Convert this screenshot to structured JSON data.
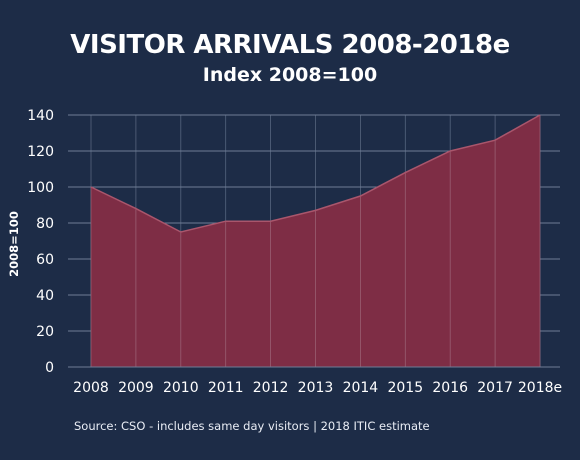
{
  "title": "VISITOR ARRIVALS 2008-2018e",
  "subtitle": "Index 2008=100",
  "source": "Source: CSO - includes same day visitors  |  2018 ITIC estimate",
  "colors": {
    "background": "#1d2c47",
    "area_fill": "#7e2d45",
    "area_stroke": "#a9566c",
    "grid": "#6f7d96",
    "text": "#ffffff"
  },
  "chart_data": {
    "type": "area",
    "title": "VISITOR ARRIVALS 2008-2018e",
    "subtitle": "Index 2008=100",
    "ylabel": "2008=100",
    "xlabel": "",
    "categories": [
      "2008",
      "2009",
      "2010",
      "2011",
      "2012",
      "2013",
      "2014",
      "2015",
      "2016",
      "2017",
      "2018e"
    ],
    "values": [
      100,
      88,
      75,
      81,
      81,
      87,
      95,
      108,
      120,
      126,
      140
    ],
    "ylim": [
      0,
      140
    ],
    "yticks": [
      0,
      20,
      40,
      60,
      80,
      100,
      120,
      140
    ],
    "grid": true,
    "legend": "none"
  }
}
